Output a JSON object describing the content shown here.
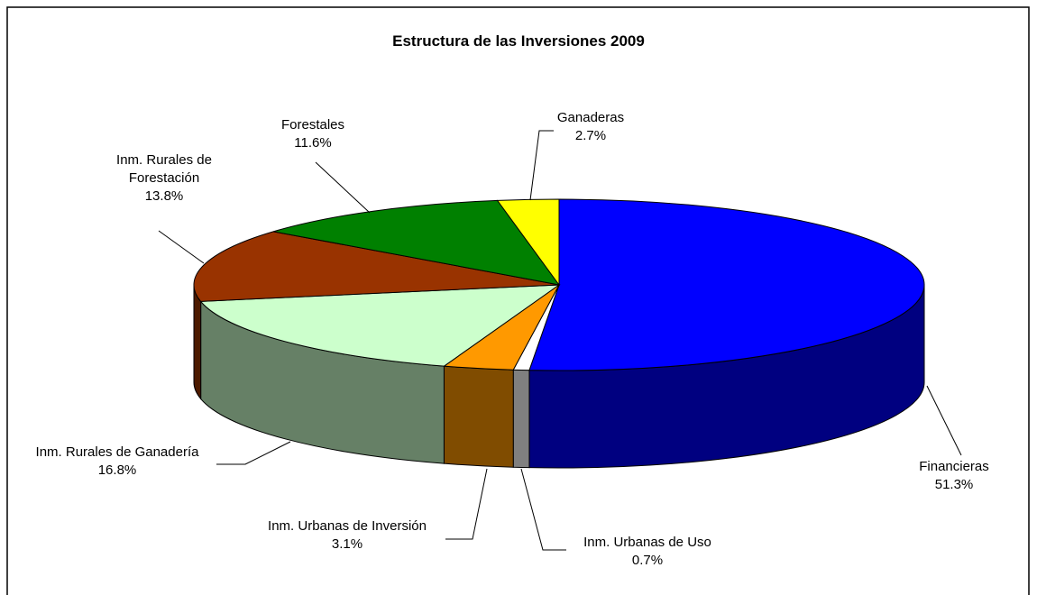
{
  "chart_data": {
    "type": "pie3d",
    "title": "Estructura de las Inversiones 2009",
    "categories": [
      "Financieras",
      "Inm. Urbanas de Uso",
      "Inm. Urbanas de Inversión",
      "Inm. Rurales de Ganadería",
      "Inm. Rurales de Forestación",
      "Forestales",
      "Ganaderas"
    ],
    "values": [
      51.3,
      0.7,
      3.1,
      16.8,
      13.8,
      11.6,
      2.7
    ],
    "value_labels": [
      "51.3%",
      "0.7%",
      "3.1%",
      "16.8%",
      "13.8%",
      "11.6%",
      "2.7%"
    ],
    "colors": [
      "#0000ff",
      "#ffffff",
      "#ff9900",
      "#ccffcc",
      "#993300",
      "#008000",
      "#ffff00"
    ],
    "side_colors": [
      "#000080",
      "#808080",
      "#804c00",
      "#668066",
      "#4d1a00",
      "#004000",
      "#808000"
    ]
  }
}
